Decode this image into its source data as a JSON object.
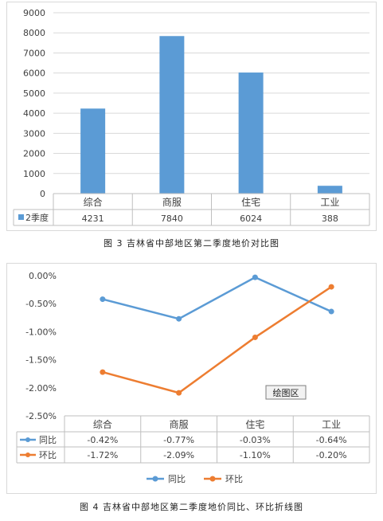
{
  "chart_data": [
    {
      "type": "table",
      "chart_type": "bar",
      "categories": [
        "综合",
        "商服",
        "住宅",
        "工业"
      ],
      "series": [
        {
          "name": "2季度",
          "values": [
            4231,
            7840,
            6024,
            388
          ],
          "color": "#5b9bd5"
        }
      ],
      "y_ticks": [
        "0",
        "1000",
        "2000",
        "3000",
        "4000",
        "5000",
        "6000",
        "7000",
        "8000",
        "9000"
      ],
      "ylim": [
        0,
        9000
      ],
      "table_values": [
        "4231",
        "7840",
        "6024",
        "388"
      ],
      "caption": "图 3  吉林省中部地区第二季度地价对比图",
      "grid": true
    },
    {
      "type": "table",
      "chart_type": "line",
      "categories": [
        "综合",
        "商服",
        "住宅",
        "工业"
      ],
      "series": [
        {
          "name": "同比",
          "values": [
            -0.42,
            -0.77,
            -0.03,
            -0.64
          ],
          "labels": [
            "-0.42%",
            "-0.77%",
            "-0.03%",
            "-0.64%"
          ],
          "color": "#5b9bd5"
        },
        {
          "name": "环比",
          "values": [
            -1.72,
            -2.09,
            -1.1,
            -0.2
          ],
          "labels": [
            "-1.72%",
            "-2.09%",
            "-1.10%",
            "-0.20%"
          ],
          "color": "#ed7d31"
        }
      ],
      "y_ticks": [
        "0.00%",
        "-0.50%",
        "-1.00%",
        "-1.50%",
        "-2.00%",
        "-2.50%"
      ],
      "ylim": [
        -2.5,
        0
      ],
      "annotation": "绘图区",
      "legend": "bottom",
      "caption": "图 4  吉林省中部地区第二季度地价同比、环比折线图"
    }
  ]
}
